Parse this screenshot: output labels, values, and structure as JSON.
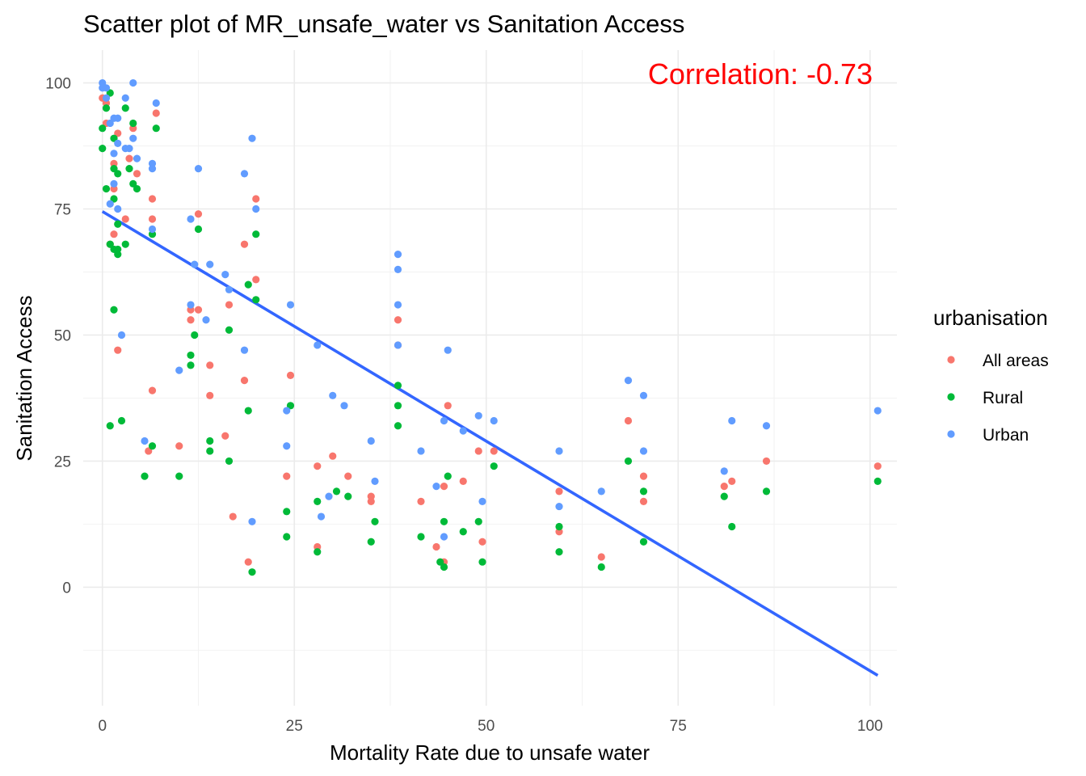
{
  "chart_data": {
    "type": "scatter",
    "title": "Scatter plot of MR_unsafe_water vs Sanitation Access",
    "xlabel": "Mortality Rate due to unsafe water",
    "ylabel": "Sanitation Access",
    "xlim": [
      -2.5,
      103.5
    ],
    "ylim": [
      -23.5,
      106.5
    ],
    "x_ticks": [
      0,
      25,
      50,
      75,
      100
    ],
    "y_ticks": [
      0,
      25,
      50,
      75,
      100
    ],
    "grid": true,
    "legend_title": "urbanisation",
    "legend_position": "right",
    "annotation": {
      "text": "Correlation:  -0.73",
      "color": "#ff0000",
      "x": 86,
      "y": 101
    },
    "trend_line": {
      "color": "#3366ff",
      "x": [
        0,
        101
      ],
      "y": [
        74.5,
        -17.5
      ]
    },
    "series": [
      {
        "name": "All areas",
        "color": "#f8766d",
        "points": [
          [
            0,
            97
          ],
          [
            0.5,
            92
          ],
          [
            0.5,
            96
          ],
          [
            1,
            68
          ],
          [
            1.5,
            84
          ],
          [
            1.5,
            70
          ],
          [
            1.5,
            79
          ],
          [
            2,
            90
          ],
          [
            2,
            47
          ],
          [
            3,
            73
          ],
          [
            3.5,
            85
          ],
          [
            4,
            91
          ],
          [
            4.5,
            82
          ],
          [
            6,
            27
          ],
          [
            6.5,
            39
          ],
          [
            6.5,
            77
          ],
          [
            6.5,
            73
          ],
          [
            7,
            94
          ],
          [
            10,
            28
          ],
          [
            11.5,
            55
          ],
          [
            11.5,
            53
          ],
          [
            12.5,
            55
          ],
          [
            12.5,
            74
          ],
          [
            14,
            44
          ],
          [
            14,
            38
          ],
          [
            16,
            30
          ],
          [
            16.5,
            56
          ],
          [
            17,
            14
          ],
          [
            18.5,
            68
          ],
          [
            18.5,
            41
          ],
          [
            19,
            5
          ],
          [
            20,
            77
          ],
          [
            20,
            61
          ],
          [
            24,
            22
          ],
          [
            24.5,
            42
          ],
          [
            28,
            24
          ],
          [
            28,
            8
          ],
          [
            30,
            26
          ],
          [
            32,
            22
          ],
          [
            35,
            18
          ],
          [
            35,
            17
          ],
          [
            38.5,
            48
          ],
          [
            38.5,
            53
          ],
          [
            41.5,
            17
          ],
          [
            43.5,
            8
          ],
          [
            44.5,
            5
          ],
          [
            44.5,
            20
          ],
          [
            45,
            36
          ],
          [
            47,
            21
          ],
          [
            49,
            27
          ],
          [
            49.5,
            9
          ],
          [
            51,
            27
          ],
          [
            59.5,
            11
          ],
          [
            59.5,
            19
          ],
          [
            65,
            6
          ],
          [
            68.5,
            33
          ],
          [
            70.5,
            22
          ],
          [
            70.5,
            17
          ],
          [
            81,
            20
          ],
          [
            82,
            21
          ],
          [
            86.5,
            25
          ],
          [
            101,
            24
          ]
        ]
      },
      {
        "name": "Rural",
        "color": "#00ba38",
        "points": [
          [
            0,
            87
          ],
          [
            0,
            91
          ],
          [
            0.5,
            95
          ],
          [
            0.5,
            79
          ],
          [
            1,
            98
          ],
          [
            1,
            32
          ],
          [
            1,
            68
          ],
          [
            1.5,
            89
          ],
          [
            1.5,
            77
          ],
          [
            1.5,
            67
          ],
          [
            1.5,
            83
          ],
          [
            1.5,
            55
          ],
          [
            2,
            82
          ],
          [
            2,
            72
          ],
          [
            2,
            66
          ],
          [
            2,
            67
          ],
          [
            2.5,
            33
          ],
          [
            3,
            68
          ],
          [
            3,
            95
          ],
          [
            3.5,
            83
          ],
          [
            4,
            80
          ],
          [
            4,
            92
          ],
          [
            4.5,
            79
          ],
          [
            5.5,
            22
          ],
          [
            6.5,
            70
          ],
          [
            6.5,
            28
          ],
          [
            7,
            91
          ],
          [
            10,
            22
          ],
          [
            11.5,
            46
          ],
          [
            11.5,
            44
          ],
          [
            12,
            50
          ],
          [
            12.5,
            71
          ],
          [
            14,
            29
          ],
          [
            14,
            27
          ],
          [
            16.5,
            25
          ],
          [
            16.5,
            51
          ],
          [
            19,
            60
          ],
          [
            19,
            35
          ],
          [
            19.5,
            3
          ],
          [
            20,
            70
          ],
          [
            20,
            57
          ],
          [
            24,
            15
          ],
          [
            24,
            10
          ],
          [
            24.5,
            36
          ],
          [
            28,
            17
          ],
          [
            28,
            7
          ],
          [
            30.5,
            19
          ],
          [
            32,
            18
          ],
          [
            35,
            9
          ],
          [
            35.5,
            13
          ],
          [
            38.5,
            40
          ],
          [
            38.5,
            36
          ],
          [
            38.5,
            32
          ],
          [
            41.5,
            10
          ],
          [
            44,
            5
          ],
          [
            44.5,
            4
          ],
          [
            44.5,
            13
          ],
          [
            45,
            22
          ],
          [
            47,
            11
          ],
          [
            49,
            13
          ],
          [
            49.5,
            5
          ],
          [
            51,
            24
          ],
          [
            59.5,
            7
          ],
          [
            59.5,
            12
          ],
          [
            65,
            4
          ],
          [
            68.5,
            25
          ],
          [
            70.5,
            9
          ],
          [
            70.5,
            19
          ],
          [
            81,
            18
          ],
          [
            82,
            12
          ],
          [
            86.5,
            19
          ],
          [
            101,
            21
          ]
        ]
      },
      {
        "name": "Urban",
        "color": "#619cff",
        "points": [
          [
            0,
            100
          ],
          [
            0,
            99
          ],
          [
            0.5,
            97
          ],
          [
            0.5,
            99
          ],
          [
            1,
            76
          ],
          [
            1,
            92
          ],
          [
            1.5,
            93
          ],
          [
            1.5,
            86
          ],
          [
            1.5,
            80
          ],
          [
            2,
            93
          ],
          [
            2,
            88
          ],
          [
            2,
            75
          ],
          [
            2.5,
            50
          ],
          [
            3,
            87
          ],
          [
            3,
            97
          ],
          [
            3.5,
            87
          ],
          [
            4,
            89
          ],
          [
            4,
            100
          ],
          [
            4.5,
            85
          ],
          [
            5.5,
            29
          ],
          [
            6.5,
            83
          ],
          [
            6.5,
            84
          ],
          [
            6.5,
            71
          ],
          [
            7,
            96
          ],
          [
            10,
            43
          ],
          [
            11.5,
            73
          ],
          [
            11.5,
            56
          ],
          [
            12,
            64
          ],
          [
            12.5,
            83
          ],
          [
            13.5,
            53
          ],
          [
            14,
            64
          ],
          [
            16,
            62
          ],
          [
            16.5,
            59
          ],
          [
            18.5,
            82
          ],
          [
            18.5,
            47
          ],
          [
            19.5,
            13
          ],
          [
            19.5,
            89
          ],
          [
            20,
            75
          ],
          [
            24,
            35
          ],
          [
            24,
            28
          ],
          [
            24.5,
            56
          ],
          [
            28,
            48
          ],
          [
            28.5,
            14
          ],
          [
            29.5,
            18
          ],
          [
            30,
            38
          ],
          [
            31.5,
            36
          ],
          [
            35,
            29
          ],
          [
            35.5,
            21
          ],
          [
            38.5,
            66
          ],
          [
            38.5,
            63
          ],
          [
            38.5,
            56
          ],
          [
            38.5,
            48
          ],
          [
            41.5,
            27
          ],
          [
            43.5,
            20
          ],
          [
            44.5,
            10
          ],
          [
            44.5,
            33
          ],
          [
            45,
            47
          ],
          [
            47,
            31
          ],
          [
            49,
            34
          ],
          [
            49.5,
            17
          ],
          [
            51,
            33
          ],
          [
            59.5,
            16
          ],
          [
            59.5,
            27
          ],
          [
            65,
            19
          ],
          [
            68.5,
            41
          ],
          [
            70.5,
            27
          ],
          [
            70.5,
            38
          ],
          [
            81,
            23
          ],
          [
            82,
            33
          ],
          [
            86.5,
            32
          ],
          [
            101,
            35
          ]
        ]
      }
    ]
  }
}
